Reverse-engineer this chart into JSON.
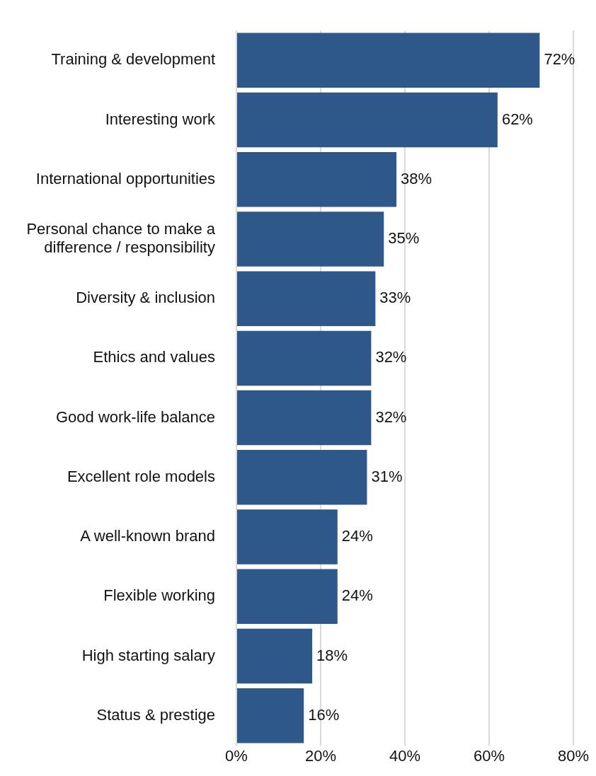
{
  "chart_data": {
    "type": "bar",
    "orientation": "horizontal",
    "categories": [
      "Training & development",
      "Interesting work",
      "International opportunities",
      "Personal chance to make a difference / responsibility",
      "Diversity & inclusion",
      "Ethics and values",
      "Good work-life balance",
      "Excellent role models",
      "A well-known brand",
      "Flexible working",
      "High starting salary",
      "Status & prestige"
    ],
    "values": [
      72,
      62,
      38,
      35,
      33,
      32,
      32,
      31,
      24,
      24,
      18,
      16
    ],
    "value_labels": [
      "72%",
      "62%",
      "38%",
      "35%",
      "33%",
      "32%",
      "32%",
      "31%",
      "24%",
      "24%",
      "18%",
      "16%"
    ],
    "color": "#2e5889",
    "xlim": [
      0,
      80
    ],
    "xticks": [
      {
        "value": 0,
        "label": "0%"
      },
      {
        "value": 20,
        "label": "20%"
      },
      {
        "value": 40,
        "label": "40%"
      },
      {
        "value": 60,
        "label": "60%"
      },
      {
        "value": 80,
        "label": "80%"
      }
    ],
    "grid": "x",
    "legend": false
  }
}
